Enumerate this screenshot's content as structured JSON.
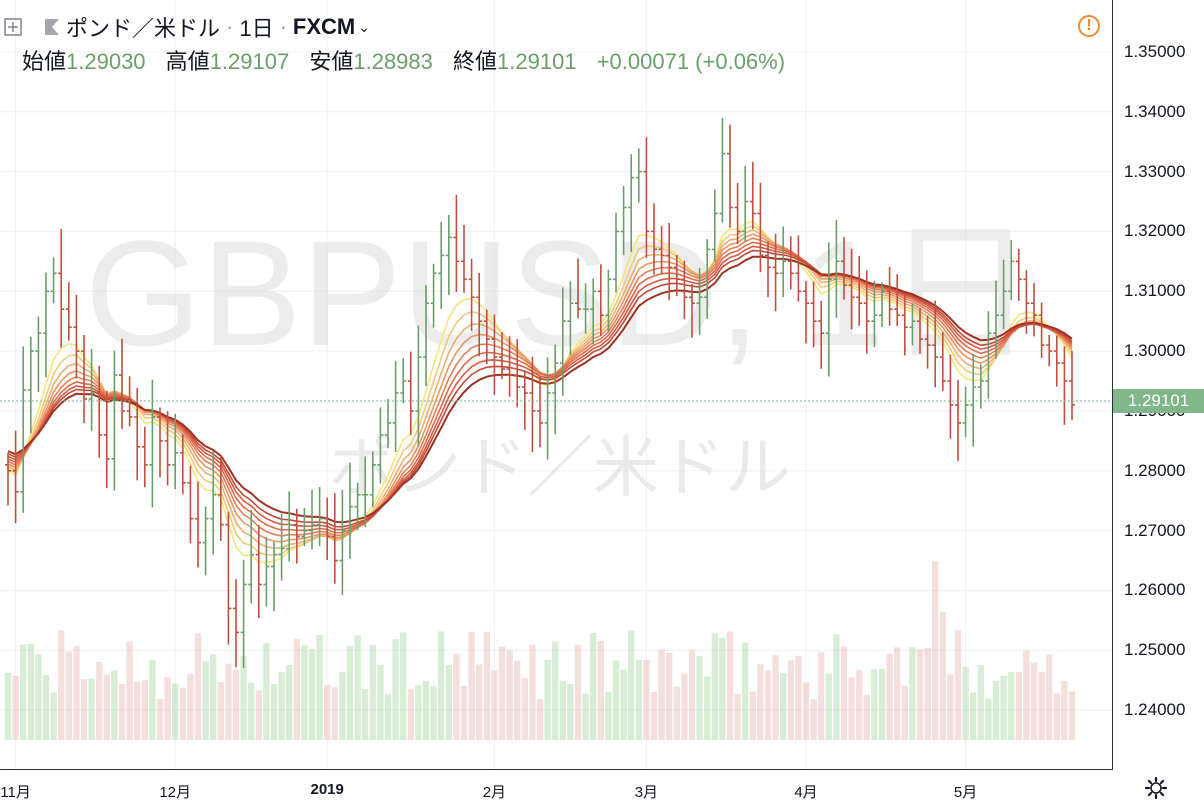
{
  "header": {
    "symbol": "ポンド／米ドル",
    "interval": "1日",
    "exchange": "FXCM",
    "dot": "·",
    "caret": "⌄",
    "plus_icon": "plus-square-icon",
    "flag_icon": "flag-icon",
    "alert": "!"
  },
  "ohlc": {
    "open_label": "始値",
    "open": "1.29030",
    "high_label": "高値",
    "high": "1.29107",
    "low_label": "安値",
    "low": "1.28983",
    "close_label": "終値",
    "close": "1.29101",
    "change": "+0.00071 (+0.06%)"
  },
  "watermark": {
    "ticker": "GBPUSD, 1日",
    "name": "ポンド／米ドル"
  },
  "last_price": "1.29101",
  "colors": {
    "up": "#6a9f6a",
    "down": "#c0503f",
    "last_badge": "#7fb68a",
    "ribbon": [
      "#f5e57a",
      "#f2c97a",
      "#eeae6e",
      "#ea9563",
      "#e57f58",
      "#df6b4c",
      "#d65a43",
      "#c24a36",
      "#9f3323"
    ]
  },
  "settings_icon": "gear-icon",
  "chart_data": {
    "type": "candlestick",
    "ylim": [
      1.23,
      1.356
    ],
    "yticks": [
      "1.35000",
      "1.34000",
      "1.33000",
      "1.32000",
      "1.31000",
      "1.30000",
      "1.29000",
      "1.28000",
      "1.27000",
      "1.26000",
      "1.25000",
      "1.24000"
    ],
    "xticks": [
      {
        "label": "11月",
        "idx": 1,
        "bold": false
      },
      {
        "label": "12月",
        "idx": 22,
        "bold": false
      },
      {
        "label": "2019",
        "idx": 42,
        "bold": true
      },
      {
        "label": "2月",
        "idx": 64,
        "bold": false
      },
      {
        "label": "3月",
        "idx": 84,
        "bold": false
      },
      {
        "label": "4月",
        "idx": 105,
        "bold": false
      },
      {
        "label": "5月",
        "idx": 126,
        "bold": false
      }
    ],
    "series_close": [
      1.28,
      1.2765,
      1.2935,
      1.3,
      1.303,
      1.31,
      1.313,
      1.307,
      1.304,
      1.3,
      1.292,
      1.293,
      1.286,
      1.282,
      1.296,
      1.29,
      1.289,
      1.284,
      1.281,
      1.289,
      1.285,
      1.281,
      1.283,
      1.278,
      1.272,
      1.268,
      1.272,
      1.276,
      1.271,
      1.257,
      1.253,
      1.261,
      1.266,
      1.261,
      1.264,
      1.266,
      1.267,
      1.271,
      1.269,
      1.27,
      1.271,
      1.272,
      1.269,
      1.265,
      1.27,
      1.274,
      1.276,
      1.276,
      1.281,
      1.286,
      1.288,
      1.293,
      1.295,
      1.29,
      1.299,
      1.308,
      1.313,
      1.316,
      1.319,
      1.315,
      1.312,
      1.309,
      1.305,
      1.302,
      1.299,
      1.297,
      1.296,
      1.294,
      1.293,
      1.29,
      1.288,
      1.293,
      1.298,
      1.305,
      1.308,
      1.307,
      1.307,
      1.31,
      1.306,
      1.312,
      1.32,
      1.324,
      1.329,
      1.33,
      1.32,
      1.317,
      1.316,
      1.314,
      1.312,
      1.309,
      1.308,
      1.309,
      1.317,
      1.323,
      1.333,
      1.324,
      1.32,
      1.325,
      1.323,
      1.316,
      1.314,
      1.313,
      1.315,
      1.313,
      1.31,
      1.308,
      1.305,
      1.303,
      1.312,
      1.315,
      1.311,
      1.309,
      1.308,
      1.305,
      1.306,
      1.31,
      1.307,
      1.306,
      1.304,
      1.305,
      1.302,
      1.301,
      1.299,
      1.295,
      1.291,
      1.288,
      1.291,
      1.294,
      1.295,
      1.303,
      1.306,
      1.31,
      1.315,
      1.312,
      1.308,
      1.306,
      1.301,
      1.3,
      1.298,
      1.295,
      1.291
    ]
  }
}
